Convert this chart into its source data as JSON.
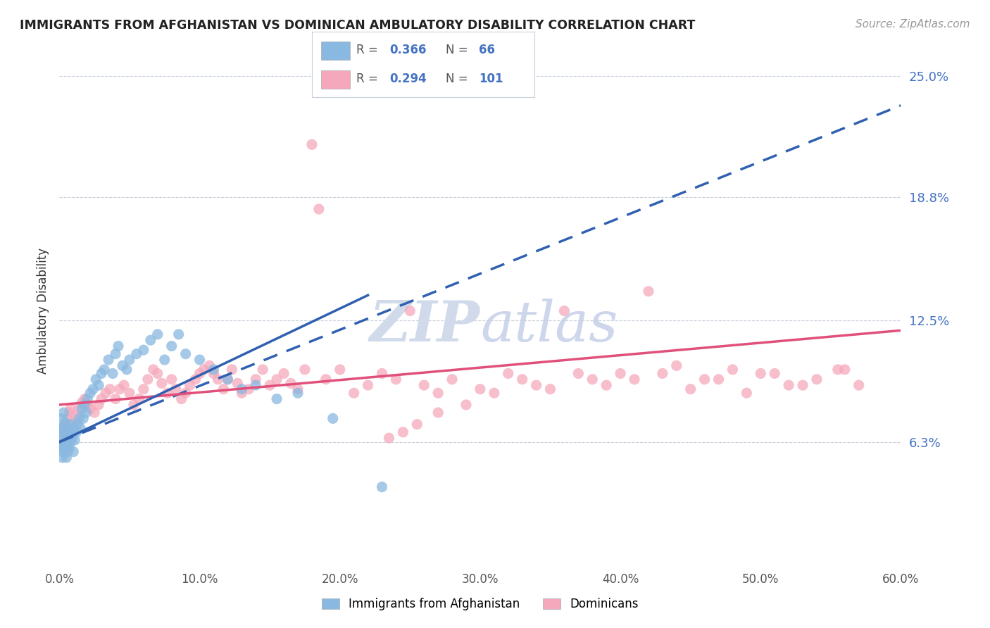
{
  "title": "IMMIGRANTS FROM AFGHANISTAN VS DOMINICAN AMBULATORY DISABILITY CORRELATION CHART",
  "source_text": "Source: ZipAtlas.com",
  "ylabel": "Ambulatory Disability",
  "x_min": 0.0,
  "x_max": 0.6,
  "y_min": 0.0,
  "y_max": 0.26,
  "y_ticks": [
    0.063,
    0.125,
    0.188,
    0.25
  ],
  "y_tick_labels": [
    "6.3%",
    "12.5%",
    "18.8%",
    "25.0%"
  ],
  "x_ticks": [
    0.0,
    0.1,
    0.2,
    0.3,
    0.4,
    0.5,
    0.6
  ],
  "x_tick_labels": [
    "0.0%",
    "10.0%",
    "20.0%",
    "30.0%",
    "40.0%",
    "50.0%",
    "60.0%"
  ],
  "color_afghanistan": "#89b8e0",
  "color_dominican": "#f5a8bc",
  "color_trend_afghanistan": "#3060b0",
  "color_trend_dominican": "#e0507a",
  "watermark_zip": "ZIP",
  "watermark_atlas": "atlas",
  "watermark_color_zip": "#c5d5ea",
  "watermark_color_atlas": "#c5cfe8",
  "afghanistan_x": [
    0.001,
    0.001,
    0.001,
    0.002,
    0.002,
    0.002,
    0.002,
    0.003,
    0.003,
    0.003,
    0.003,
    0.004,
    0.004,
    0.004,
    0.005,
    0.005,
    0.005,
    0.006,
    0.006,
    0.007,
    0.007,
    0.008,
    0.008,
    0.009,
    0.01,
    0.01,
    0.011,
    0.012,
    0.013,
    0.014,
    0.015,
    0.016,
    0.017,
    0.018,
    0.019,
    0.02,
    0.022,
    0.024,
    0.026,
    0.028,
    0.03,
    0.032,
    0.035,
    0.038,
    0.04,
    0.042,
    0.045,
    0.048,
    0.05,
    0.055,
    0.06,
    0.065,
    0.07,
    0.075,
    0.08,
    0.085,
    0.09,
    0.1,
    0.11,
    0.12,
    0.13,
    0.14,
    0.155,
    0.17,
    0.195,
    0.23
  ],
  "afghanistan_y": [
    0.06,
    0.065,
    0.07,
    0.055,
    0.062,
    0.068,
    0.075,
    0.058,
    0.063,
    0.07,
    0.078,
    0.06,
    0.067,
    0.073,
    0.055,
    0.062,
    0.07,
    0.058,
    0.066,
    0.06,
    0.068,
    0.063,
    0.072,
    0.065,
    0.058,
    0.07,
    0.064,
    0.068,
    0.072,
    0.075,
    0.07,
    0.08,
    0.075,
    0.082,
    0.078,
    0.085,
    0.088,
    0.09,
    0.095,
    0.092,
    0.098,
    0.1,
    0.105,
    0.098,
    0.108,
    0.112,
    0.102,
    0.1,
    0.105,
    0.108,
    0.11,
    0.115,
    0.118,
    0.105,
    0.112,
    0.118,
    0.108,
    0.105,
    0.1,
    0.095,
    0.09,
    0.092,
    0.085,
    0.088,
    0.075,
    0.04
  ],
  "dominican_x": [
    0.002,
    0.003,
    0.004,
    0.005,
    0.006,
    0.007,
    0.008,
    0.01,
    0.012,
    0.014,
    0.016,
    0.018,
    0.02,
    0.022,
    0.025,
    0.028,
    0.03,
    0.033,
    0.036,
    0.04,
    0.043,
    0.046,
    0.05,
    0.053,
    0.057,
    0.06,
    0.063,
    0.067,
    0.07,
    0.073,
    0.077,
    0.08,
    0.083,
    0.087,
    0.09,
    0.093,
    0.097,
    0.1,
    0.103,
    0.107,
    0.11,
    0.113,
    0.117,
    0.12,
    0.123,
    0.127,
    0.13,
    0.135,
    0.14,
    0.145,
    0.15,
    0.155,
    0.16,
    0.165,
    0.17,
    0.175,
    0.18,
    0.185,
    0.19,
    0.2,
    0.21,
    0.22,
    0.23,
    0.24,
    0.25,
    0.26,
    0.27,
    0.28,
    0.3,
    0.32,
    0.34,
    0.36,
    0.38,
    0.4,
    0.42,
    0.44,
    0.46,
    0.48,
    0.5,
    0.52,
    0.54,
    0.555,
    0.57,
    0.56,
    0.53,
    0.51,
    0.49,
    0.47,
    0.45,
    0.43,
    0.41,
    0.39,
    0.37,
    0.35,
    0.33,
    0.31,
    0.29,
    0.27,
    0.255,
    0.245,
    0.235
  ],
  "dominican_y": [
    0.07,
    0.065,
    0.072,
    0.068,
    0.075,
    0.078,
    0.08,
    0.073,
    0.076,
    0.08,
    0.083,
    0.085,
    0.082,
    0.08,
    0.078,
    0.082,
    0.085,
    0.088,
    0.09,
    0.085,
    0.09,
    0.092,
    0.088,
    0.082,
    0.085,
    0.09,
    0.095,
    0.1,
    0.098,
    0.093,
    0.088,
    0.095,
    0.09,
    0.085,
    0.088,
    0.092,
    0.095,
    0.098,
    0.1,
    0.102,
    0.098,
    0.095,
    0.09,
    0.095,
    0.1,
    0.093,
    0.088,
    0.09,
    0.095,
    0.1,
    0.092,
    0.095,
    0.098,
    0.093,
    0.09,
    0.1,
    0.215,
    0.182,
    0.095,
    0.1,
    0.088,
    0.092,
    0.098,
    0.095,
    0.13,
    0.092,
    0.088,
    0.095,
    0.09,
    0.098,
    0.092,
    0.13,
    0.095,
    0.098,
    0.14,
    0.102,
    0.095,
    0.1,
    0.098,
    0.092,
    0.095,
    0.1,
    0.092,
    0.1,
    0.092,
    0.098,
    0.088,
    0.095,
    0.09,
    0.098,
    0.095,
    0.092,
    0.098,
    0.09,
    0.095,
    0.088,
    0.082,
    0.078,
    0.072,
    0.068,
    0.065
  ],
  "trend_af_x0": 0.0,
  "trend_af_x1": 0.6,
  "trend_af_y0": 0.063,
  "trend_af_y1": 0.235,
  "trend_dom_x0": 0.0,
  "trend_dom_x1": 0.6,
  "trend_dom_y0": 0.082,
  "trend_dom_y1": 0.12,
  "legend_items": [
    {
      "label": "R = 0.366  N =  66",
      "color": "#89b8e0"
    },
    {
      "label": "R = 0.294  N = 101",
      "color": "#f5a8bc"
    }
  ],
  "bottom_legend": [
    {
      "label": "Immigrants from Afghanistan",
      "color": "#89b8e0"
    },
    {
      "label": "Dominicans",
      "color": "#f5a8bc"
    }
  ]
}
